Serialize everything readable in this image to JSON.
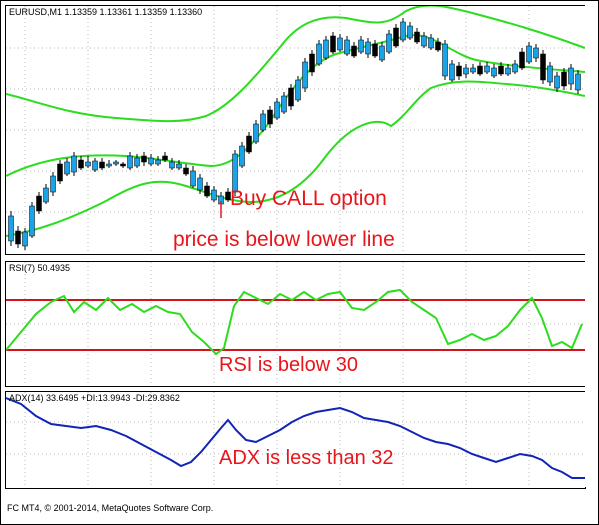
{
  "colors": {
    "band": "#2cdc1e",
    "bull_candle": "#1aa3e8",
    "bear_candle": "#000000",
    "rsi_line": "#2cdc1e",
    "rsi_levels": "#d0141c",
    "adx_line": "#1024b8",
    "annotation": "#e8151b",
    "grid": "#b8b8b8"
  },
  "price_panel": {
    "header": "EURUSD,M1  1.13359 1.13361 1.13359 1.13360",
    "annotations": {
      "call": "Buy CALL option",
      "price": "price is below lower line"
    }
  },
  "rsi_panel": {
    "header": "RSI(7) 50.4935",
    "annotation": "RSI is below 30",
    "levels": [
      70,
      30
    ]
  },
  "adx_panel": {
    "header": "ADX(14) 33.6495 +DI:13.9943 -DI:29.8362",
    "annotation": "ADX is less than 32"
  },
  "footer": "FC MT4, © 2001-2014, MetaQuotes Software Corp."
}
